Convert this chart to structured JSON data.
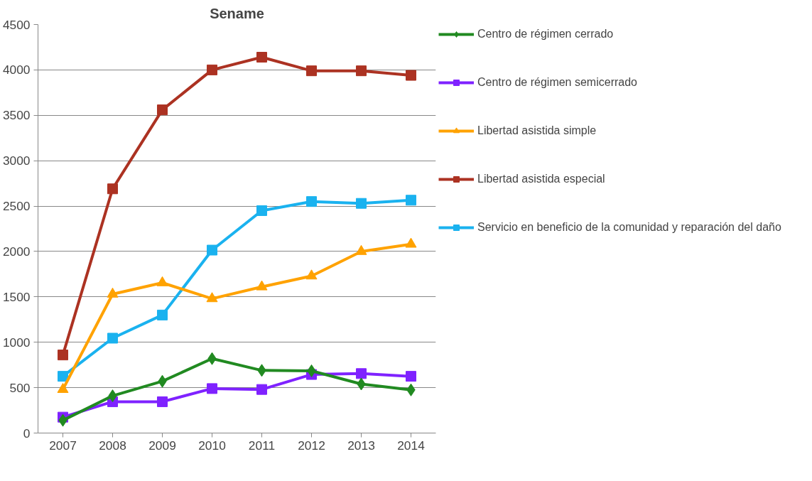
{
  "chart_data": {
    "type": "line",
    "title": "Sename",
    "categories": [
      "2007",
      "2008",
      "2009",
      "2010",
      "2011",
      "2012",
      "2013",
      "2014"
    ],
    "ylim": [
      0,
      4500
    ],
    "yticks": [
      0,
      500,
      1000,
      1500,
      2000,
      2500,
      3000,
      3500,
      4000,
      4500
    ],
    "grid": "y",
    "legend": "right",
    "line_style": "solid",
    "series": [
      {
        "name": "Centro de régimen cerrado",
        "color": "#218a21",
        "marker": "diamond",
        "values": [
          140,
          410,
          570,
          820,
          690,
          685,
          540,
          475
        ]
      },
      {
        "name": "Centro de régimen semicerrado",
        "color": "#7f22ff",
        "marker": "square",
        "values": [
          175,
          345,
          345,
          490,
          480,
          645,
          655,
          625
        ]
      },
      {
        "name": "Libertad asistida simple",
        "color": "#ffa200",
        "marker": "triangle",
        "values": [
          480,
          1530,
          1655,
          1480,
          1610,
          1730,
          2000,
          2080
        ]
      },
      {
        "name": "Libertad asistida especial",
        "color": "#ac3222",
        "marker": "square",
        "values": [
          860,
          2690,
          3560,
          4000,
          4140,
          3990,
          3990,
          3940
        ]
      },
      {
        "name": "Servicio en beneficio de la comunidad y reparación del daño",
        "color": "#1ab2ef",
        "marker": "square",
        "values": [
          625,
          1045,
          1300,
          2015,
          2450,
          2550,
          2530,
          2565
        ]
      }
    ]
  }
}
